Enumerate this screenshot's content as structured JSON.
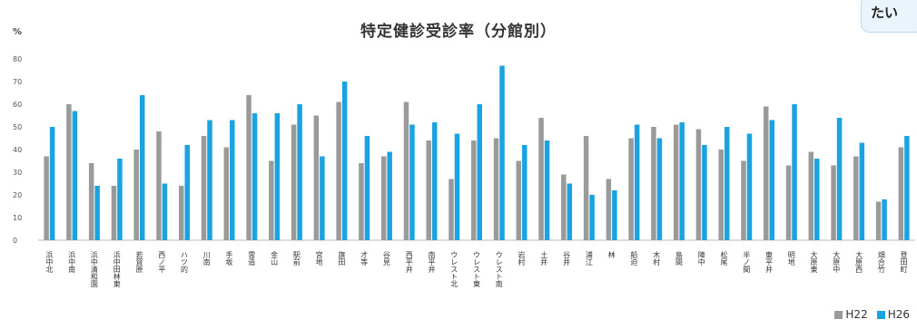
{
  "page": {
    "corner_chip_text": "たい"
  },
  "chart_data": {
    "type": "bar",
    "title": "特定健診受診率（分館別）",
    "ylabel": "%",
    "ylim": [
      0,
      80
    ],
    "yticks": [
      0,
      10,
      20,
      30,
      40,
      50,
      60,
      70,
      80
    ],
    "grid": false,
    "legend_position": "bottom-right",
    "categories": [
      "浜中北",
      "浜中南",
      "浜中清和園",
      "浜中田林東",
      "若賀原",
      "西ノ平",
      "ハツ的",
      "川南",
      "手坂",
      "雲造",
      "金山",
      "駅前",
      "宮地",
      "旗田",
      "才等",
      "谷見",
      "西平井",
      "南平井",
      "ウレスト北",
      "ウレスト東",
      "ウレスト南",
      "岩村",
      "土井",
      "谷井",
      "浦江",
      "林",
      "船迫",
      "木村",
      "島間",
      "陣中",
      "松尾",
      "半ノ間",
      "東平井",
      "明地",
      "大原東",
      "大原中",
      "大原西",
      "畑合竹",
      "登田町"
    ],
    "series": [
      {
        "name": "H22",
        "color": "#9a9a9a",
        "values": [
          37,
          60,
          34,
          24,
          40,
          48,
          24,
          46,
          41,
          64,
          35,
          51,
          55,
          61,
          34,
          37,
          61,
          44,
          27,
          44,
          45,
          35,
          54,
          29,
          46,
          27,
          45,
          50,
          51,
          49,
          40,
          35,
          59,
          33,
          39,
          33,
          37,
          17,
          41
        ]
      },
      {
        "name": "H26",
        "color": "#1aa3e0",
        "values": [
          50,
          57,
          24,
          36,
          64,
          25,
          42,
          53,
          53,
          56,
          56,
          60,
          37,
          70,
          46,
          39,
          51,
          52,
          47,
          60,
          77,
          42,
          44,
          25,
          20,
          22,
          51,
          45,
          52,
          42,
          50,
          47,
          53,
          60,
          36,
          54,
          43,
          18,
          46
        ]
      }
    ]
  }
}
